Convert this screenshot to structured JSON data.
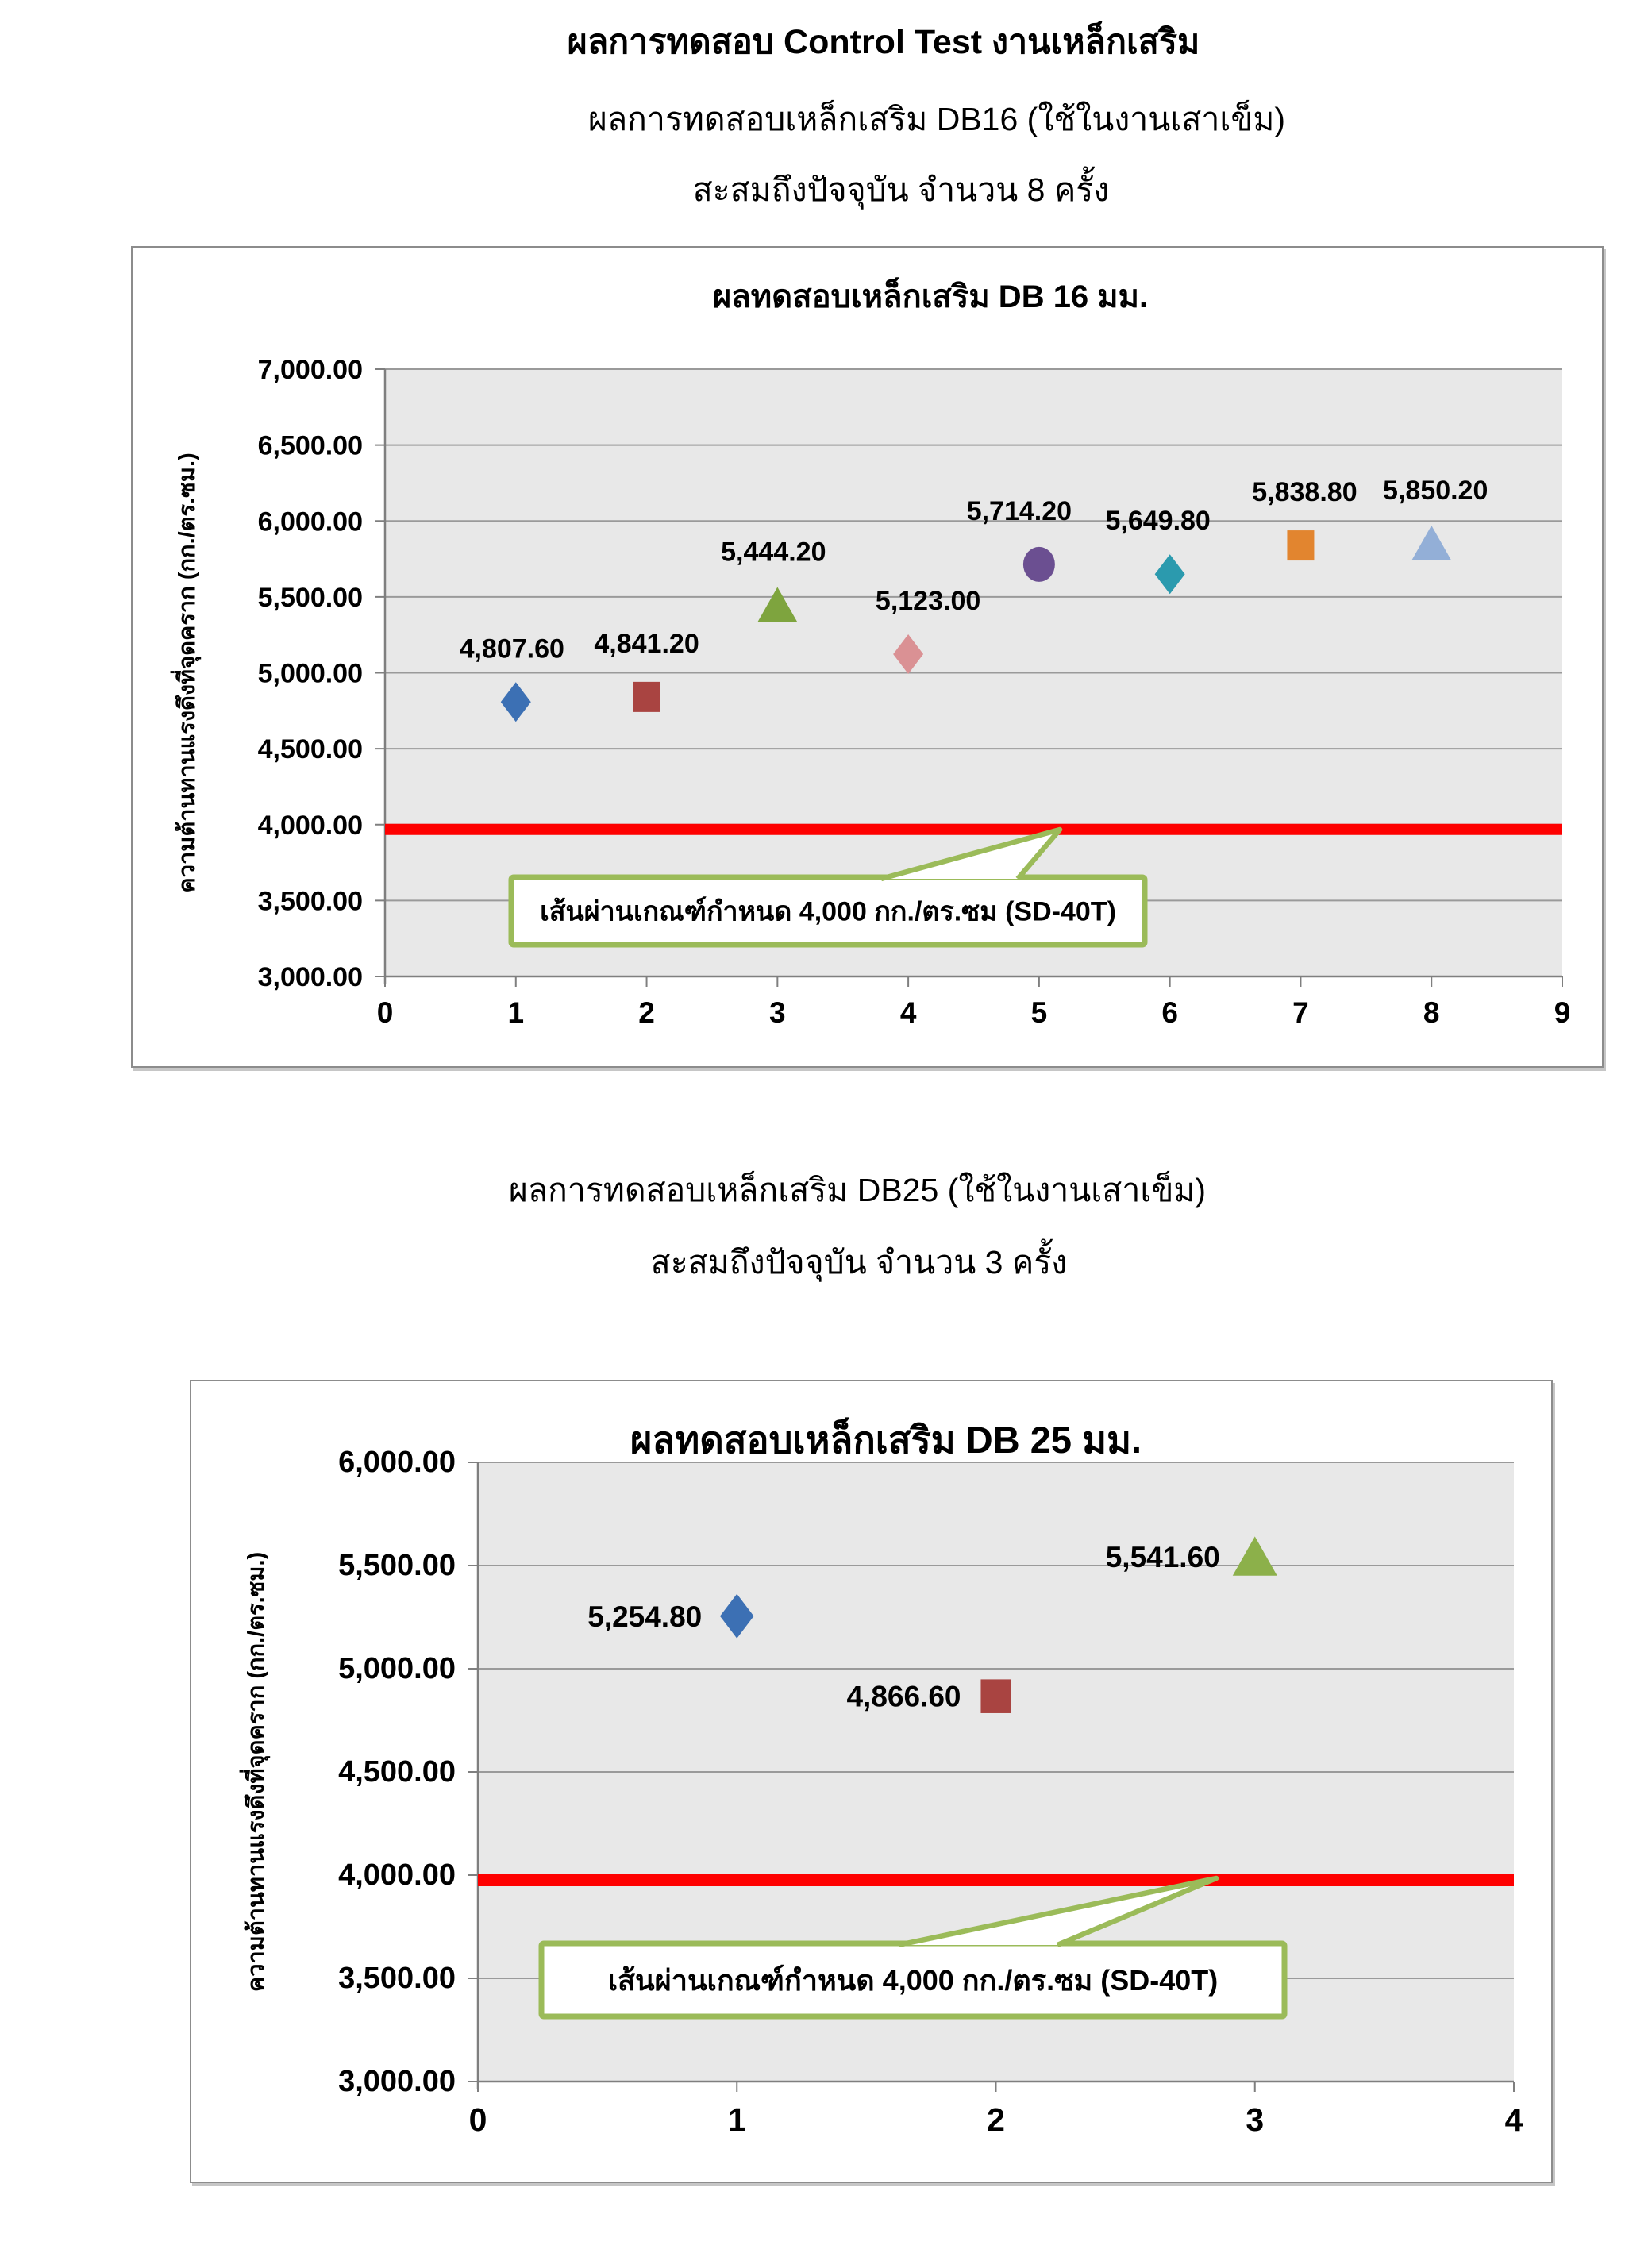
{
  "page": {
    "title_lines": [
      "ผลการทดสอบ Control Test งานเหล็กเสริม",
      "ผลการทดสอบเหล็กเสริม DB16 (ใช้ในงานเสาเข็ม)",
      "สะสมถึงปัจจุบัน จำนวน 8 ครั้ง"
    ],
    "section2_lines": [
      "ผลการทดสอบเหล็กเสริม DB25 (ใช้ในงานเสาเข็ม)",
      "สะสมถึงปัจจุบัน จำนวน 3 ครั้ง"
    ]
  },
  "colors": {
    "spec_line": "#FE0000",
    "callout_border": "#9BBB59",
    "plot_background": "#E8E8E8",
    "gridline": "#9A9A9A",
    "axis": "#7F7F7F"
  },
  "chart_data": [
    {
      "type": "scatter",
      "title": "ผลทดสอบเหล็กเสริม DB 16 มม.",
      "xlabel": "",
      "ylabel": "ความต้านทานแรงดึงที่จุดคราก  (กก./ตร.ซม.)",
      "xlim": [
        0,
        9
      ],
      "ylim": [
        3000,
        7000
      ],
      "ytick_step": 500,
      "xtick_step": 1,
      "grid": true,
      "legend": "none",
      "x": [
        1,
        2,
        3,
        4,
        5,
        6,
        7,
        8
      ],
      "values": [
        4807.6,
        4841.2,
        5444.2,
        5123.0,
        5714.2,
        5649.8,
        5838.8,
        5850.2
      ],
      "point_labels": [
        "4,807.60",
        "4,841.20",
        "5,444.20",
        "5,123.00",
        "5,714.20",
        "5,649.80",
        "5,838.80",
        "5,850.20"
      ],
      "markers": [
        {
          "shape": "diamond",
          "color": "#3C70B4"
        },
        {
          "shape": "square",
          "color": "#A94441"
        },
        {
          "shape": "triangle",
          "color": "#7EA43E"
        },
        {
          "shape": "diamond",
          "color": "#DA9194"
        },
        {
          "shape": "circle",
          "color": "#6B4F91"
        },
        {
          "shape": "diamond",
          "color": "#2B9AAE"
        },
        {
          "shape": "square",
          "color": "#E2852F"
        },
        {
          "shape": "triangle",
          "color": "#93AFD7"
        }
      ],
      "ytick_labels": [
        "7,000.00",
        "6,500.00",
        "6,000.00",
        "5,500.00",
        "5,000.00",
        "4,500.00",
        "4,000.00",
        "3,500.00",
        "3,000.00"
      ],
      "xtick_labels": [
        "0",
        "1",
        "2",
        "3",
        "4",
        "5",
        "6",
        "7",
        "8",
        "9"
      ],
      "reference_line": {
        "value": 4000,
        "callout_text": "เส้นผ่านเกณฑ์กำหนด 4,000  กก./ตร.ซม (SD-40T)"
      }
    },
    {
      "type": "scatter",
      "title": "ผลทดสอบเหล็กเสริม DB 25 มม.",
      "xlabel": "",
      "ylabel": "ความต้านทานแรงดึงที่จุดคราก  (กก./ตร.ซม.)",
      "xlim": [
        0,
        4
      ],
      "ylim": [
        3000,
        6000
      ],
      "ytick_step": 500,
      "xtick_step": 1,
      "grid": true,
      "legend": "none",
      "x": [
        1,
        2,
        3
      ],
      "values": [
        5254.8,
        4866.6,
        5541.6
      ],
      "point_labels": [
        "5,254.80",
        "4,866.60",
        "5,541.60"
      ],
      "markers": [
        {
          "shape": "diamond",
          "color": "#3C70B4"
        },
        {
          "shape": "square",
          "color": "#A94441"
        },
        {
          "shape": "triangle",
          "color": "#8CB04A"
        }
      ],
      "ytick_labels": [
        "6,000.00",
        "5,500.00",
        "5,000.00",
        "4,500.00",
        "4,000.00",
        "3,500.00",
        "3,000.00"
      ],
      "xtick_labels": [
        "0",
        "1",
        "2",
        "3",
        "4"
      ],
      "reference_line": {
        "value": 4000,
        "callout_text": "เส้นผ่านเกณฑ์กำหนด 4,000  กก./ตร.ซม (SD-40T)"
      }
    }
  ]
}
